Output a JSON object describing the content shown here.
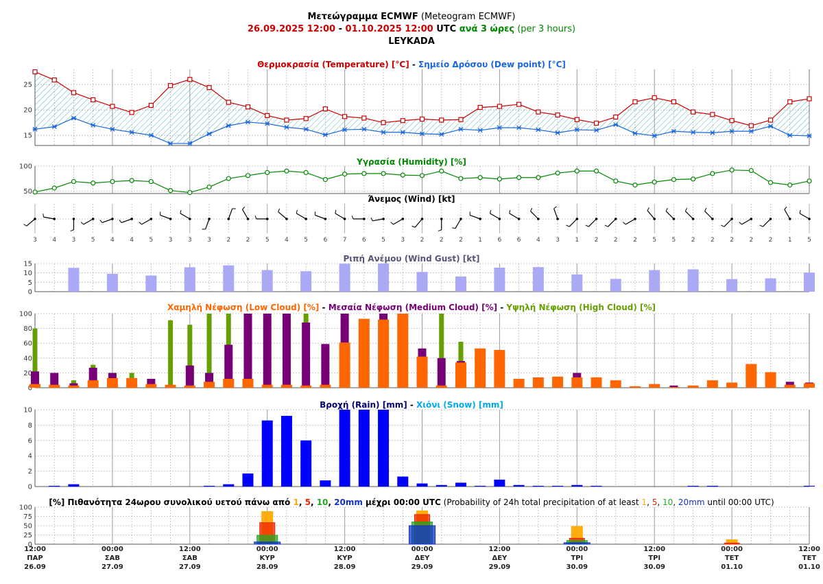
{
  "header": {
    "line1": {
      "greek": "Μετεώγραμμα ECMWF",
      "english": "(Meteogram ECMWF)"
    },
    "line2": {
      "from": "26.09.2025 12:00",
      "dash": " - ",
      "to": "01.10.2025 12:00",
      "utc": " UTC ",
      "every": "ανά 3 ώρες",
      "per": " (per 3 hours)"
    },
    "location": "LEYKADA"
  },
  "colors": {
    "temperature": "#cc0000",
    "dew_point": "#1a66dd",
    "humidity": "#008800",
    "wind": "#000000",
    "gust": "#a9a9f5",
    "low_cloud": "#ff6600",
    "medium_cloud": "#770077",
    "high_cloud": "#66a000",
    "rain": "#0000ff",
    "snow": "#00aaee",
    "prob1": "#ffaa00",
    "prob5": "#ee2200",
    "prob10": "#22aa22",
    "prob20": "#1133cc"
  },
  "panels": {
    "temp": {
      "t1": "Θερμοκρασία (Temperature) [°C]",
      "sep": " - ",
      "t2": "Σημείο Δρόσου (Dew point) [°C]"
    },
    "humidity": {
      "t1": "Υγρασία (Humidity) [%]"
    },
    "wind": {
      "t1": "Άνεμος (Wind) [kt]"
    },
    "gust": {
      "t1": "Ριπή Ανέμου (Wind Gust) [kt]"
    },
    "cloud": {
      "t1": "Χαμηλή Νέφωση (Low Cloud) [%]",
      "sep": " - ",
      "t2": "Μεσαία Νέφωση (Medium Cloud) [%]",
      "sep2": " - ",
      "t3": "Υψηλή Νέφωση (High Cloud) [%]"
    },
    "precip": {
      "t1": "Βροχή (Rain) [mm]",
      "sep": " - ",
      "t2": "Χιόνι (Snow) [mm]"
    },
    "prob": {
      "pre": "[%] Πιθανότητα 24ωρου συνολικού υετού πάνω από ",
      "v1": "1",
      "c1": ", ",
      "v2": "5",
      "c2": ", ",
      "v3": "10",
      "c3": ", ",
      "v4": "20mm",
      "mid": " μέχρι 00:00 UTC",
      "en_pre": " (Probability of 24h total precipitation of at least ",
      "e1": "1",
      "ec1": ", ",
      "e2": "5",
      "ec2": ", ",
      "e3": "10",
      "ec3": ", ",
      "e4": "20mm",
      "en_post": " until 00:00 UTC)"
    }
  },
  "chart_data": [
    {
      "type": "line",
      "title": "Θερμοκρασία (Temperature) [°C] - Σημείο Δρόσου (Dew point) [°C]",
      "x_labels": [
        "12:00 ΠΑΡ 26.09",
        "00:00 ΣΑΒ 27.09",
        "12:00 ΣΑΒ 27.09",
        "00:00 ΚΥΡ 28.09",
        "12:00 ΚΥΡ 28.09",
        "00:00 ΔΕΥ 29.09",
        "12:00 ΔΕΥ 29.09",
        "00:00 ΤΡΙ 30.09",
        "12:00 ΤΡΙ 30.09",
        "00:00 ΤΕΤ 01.10",
        "12:00 ΤΕΤ 01.10"
      ],
      "yticks": [
        15,
        20,
        25
      ],
      "ylim": [
        13,
        28
      ],
      "series": [
        {
          "name": "Θερμοκρασία (Temperature)",
          "values": [
            27.5,
            25.9,
            23.4,
            22.0,
            20.7,
            19.5,
            20.9,
            24.8,
            26.0,
            24.4,
            21.5,
            20.6,
            18.9,
            18.0,
            18.3,
            20.2,
            18.7,
            18.4,
            17.5,
            17.9,
            18.2,
            18.0,
            18.1,
            20.5,
            20.7,
            21.1,
            19.6,
            19.0,
            18.1,
            17.4,
            18.6,
            21.6,
            22.4,
            21.6,
            19.6,
            19.1,
            17.9,
            16.9,
            18.0,
            21.6,
            22.2
          ]
        },
        {
          "name": "Σημείο Δρόσου (Dew point)",
          "values": [
            16.2,
            16.7,
            18.4,
            17.0,
            16.2,
            15.6,
            15.0,
            13.4,
            13.4,
            15.3,
            16.9,
            17.6,
            17.3,
            16.6,
            16.2,
            15.1,
            16.1,
            16.2,
            15.6,
            15.6,
            15.3,
            15.2,
            16.2,
            16.0,
            16.5,
            16.5,
            16.1,
            15.5,
            16.1,
            16.0,
            17.1,
            15.4,
            14.9,
            15.8,
            15.6,
            15.5,
            15.8,
            15.8,
            16.8,
            15.0,
            14.9
          ]
        }
      ]
    },
    {
      "type": "line",
      "title": "Υγρασία (Humidity) [%]",
      "yticks": [
        50,
        100
      ],
      "ylim": [
        45,
        100
      ],
      "series": [
        {
          "name": "Υγρασία (Humidity)",
          "values": [
            48,
            56,
            69,
            66,
            69,
            71,
            69,
            51,
            47,
            58,
            75,
            81,
            87,
            90,
            87,
            73,
            84,
            85,
            85,
            82,
            81,
            90,
            75,
            77,
            74,
            77,
            77,
            86,
            90,
            90,
            70,
            62,
            68,
            73,
            74,
            85,
            92,
            91,
            67,
            62,
            70
          ]
        }
      ]
    },
    {
      "type": "scatter",
      "title": "Άνεμος (Wind) [kt]",
      "series": [
        {
          "name": "speed_kt",
          "values": [
            3,
            4,
            3,
            5,
            4,
            4,
            5,
            3,
            3,
            3,
            2,
            2,
            5,
            4,
            5,
            6,
            7,
            6,
            5,
            3,
            2,
            2,
            2,
            1,
            6,
            6,
            4,
            3,
            1,
            2,
            2,
            2,
            5,
            5,
            2,
            2,
            2,
            2,
            2,
            1,
            5
          ]
        },
        {
          "name": "direction_deg",
          "values": [
            230,
            280,
            180,
            240,
            250,
            250,
            240,
            290,
            300,
            200,
            20,
            330,
            270,
            310,
            300,
            290,
            300,
            270,
            260,
            240,
            220,
            180,
            210,
            290,
            300,
            300,
            315,
            340,
            225,
            225,
            225,
            240,
            320,
            315,
            315,
            315,
            225,
            240,
            225,
            330,
            300
          ]
        }
      ]
    },
    {
      "type": "bar",
      "title": "Ριπή Ανέμου (Wind Gust) [kt]",
      "yticks": [
        0,
        5,
        10,
        15
      ],
      "ylim": [
        0,
        15
      ],
      "series": [
        {
          "name": "Ριπή Ανέμου (Wind Gust)",
          "values": [
            12.7,
            9.5,
            8.6,
            13,
            14,
            11.5,
            10.9,
            14.9,
            15,
            10.5,
            8.1,
            12.8,
            13.1,
            9.2,
            6.8,
            11.5,
            11.9,
            6.7,
            7.1,
            10.2
          ]
        }
      ]
    },
    {
      "type": "bar",
      "title": "Χαμηλή Νέφωση (Low Cloud) [%] - Μεσαία Νέφωση (Medium Cloud) [%] - Υψηλή Νέφωση (High Cloud) [%]",
      "yticks": [
        0,
        20,
        40,
        60,
        80,
        100
      ],
      "ylim": [
        0,
        100
      ],
      "series": [
        {
          "name": "Υψηλή Νέφωση (High Cloud)",
          "values": [
            80,
            0,
            10,
            31,
            0,
            20,
            0,
            91,
            85,
            100,
            100,
            0,
            0,
            100,
            100,
            0,
            0,
            0,
            0,
            0,
            0,
            100,
            62,
            0,
            0,
            0,
            0,
            0,
            0,
            0,
            0,
            0,
            0,
            0,
            0,
            0,
            0,
            0,
            0,
            0,
            0
          ]
        },
        {
          "name": "Μεσαία Νέφωση (Medium Cloud)",
          "values": [
            22,
            20,
            6,
            27,
            20,
            11,
            12,
            0,
            30,
            20,
            58,
            100,
            100,
            100,
            88,
            59,
            100,
            0,
            100,
            0,
            53,
            40,
            36,
            0,
            0,
            0,
            0,
            0,
            20,
            0,
            0,
            0,
            0,
            3,
            0,
            0,
            0,
            0,
            0,
            8,
            7
          ]
        },
        {
          "name": "Χαμηλή Νέφωση (Low Cloud)",
          "values": [
            5,
            4,
            3,
            10,
            13,
            13,
            5,
            4,
            3,
            8,
            12,
            12,
            4,
            4,
            3,
            4,
            61,
            93,
            92,
            100,
            42,
            3,
            34,
            53,
            51,
            12,
            14,
            15,
            14,
            14,
            10,
            2,
            5,
            1,
            3,
            10,
            7,
            32,
            21,
            4,
            6
          ]
        }
      ]
    },
    {
      "type": "bar",
      "title": "Βροχή (Rain) [mm] - Χιόνι (Snow) [mm]",
      "yticks": [
        0,
        2,
        4,
        6,
        8,
        10
      ],
      "ylim": [
        0,
        10
      ],
      "series": [
        {
          "name": "Βροχή (Rain)",
          "values": [
            0,
            0.1,
            0.3,
            0,
            0,
            0,
            0,
            0,
            0,
            0.1,
            0.3,
            1.7,
            8.6,
            9.2,
            6.0,
            0.8,
            10,
            10,
            10,
            1.3,
            0.4,
            0.2,
            0.5,
            0.1,
            0.9,
            0.2,
            0.1,
            0.1,
            0.2,
            0.1,
            0,
            0,
            0,
            0,
            0.1,
            0.1,
            0,
            0,
            0,
            0,
            0.1
          ]
        },
        {
          "name": "Χιόνι (Snow)",
          "values": [
            0,
            0,
            0,
            0,
            0,
            0,
            0,
            0,
            0,
            0,
            0,
            0,
            0,
            0,
            0,
            0,
            0,
            0,
            0,
            0,
            0,
            0,
            0,
            0,
            0,
            0,
            0,
            0,
            0,
            0,
            0,
            0,
            0,
            0,
            0,
            0,
            0,
            0,
            0,
            0,
            0
          ]
        }
      ]
    },
    {
      "type": "bar",
      "title": "[%] Πιθανότητα 24ωρου συνολικού υετού πάνω από 1, 5, 10, 20mm μέχρι 00:00 UTC (Probability of 24h total precipitation of at least 1, 5, 10, 20mm until 00:00 UTC)",
      "categories": [
        "28.09",
        "29.09",
        "30.09",
        "01.10"
      ],
      "yticks": [
        0,
        25,
        50,
        75,
        100
      ],
      "ylim": [
        0,
        100
      ],
      "series": [
        {
          "name": "1mm",
          "values": [
            88,
            90,
            48,
            12
          ]
        },
        {
          "name": "5mm",
          "values": [
            58,
            80,
            16,
            3
          ]
        },
        {
          "name": "10mm",
          "values": [
            24,
            60,
            10,
            0
          ]
        },
        {
          "name": "20mm",
          "values": [
            6,
            50,
            4,
            0
          ]
        }
      ]
    }
  ]
}
